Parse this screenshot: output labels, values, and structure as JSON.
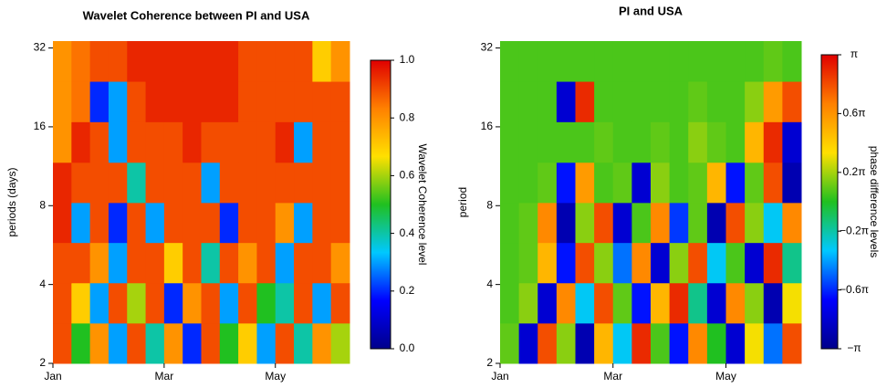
{
  "chart_data": [
    {
      "type": "heatmap",
      "title": "Wavelet Coherence between PI and USA",
      "ylabel": "periods (days)",
      "zlabel": "Wavelet Coherence level",
      "x": [
        "Jan",
        null,
        null,
        null,
        null,
        null,
        "Mar",
        null,
        null,
        null,
        null,
        null,
        "May",
        null,
        null,
        null
      ],
      "y": [
        2.39,
        3.4,
        4.85,
        6.9,
        9.8,
        14,
        20,
        28.5
      ],
      "ylim": [
        2,
        34
      ],
      "yticks": [
        2,
        4,
        8,
        16,
        32
      ],
      "log_y": true,
      "zlim": [
        0,
        1
      ],
      "zticks": [
        {
          "value": 0,
          "label": "0.0"
        },
        {
          "value": 0.2,
          "label": "0.2"
        },
        {
          "value": 0.4,
          "label": "0.4"
        },
        {
          "value": 0.6,
          "label": "0.6"
        },
        {
          "value": 0.8,
          "label": "0.8"
        },
        {
          "value": 1,
          "label": "1.0"
        }
      ],
      "colormap": [
        "#00008b",
        "#0000ff",
        "#00c8ff",
        "#20c020",
        "#ffe000",
        "#ff8000",
        "#e00000"
      ],
      "z": [
        [
          0.9,
          0.5,
          0.8,
          0.3,
          0.9,
          0.4,
          0.8,
          0.2,
          0.9,
          0.5,
          0.7,
          0.3,
          0.9,
          0.4,
          0.8,
          0.6
        ],
        [
          0.9,
          0.7,
          0.3,
          0.9,
          0.6,
          0.9,
          0.2,
          0.8,
          0.9,
          0.3,
          0.9,
          0.5,
          0.4,
          0.9,
          0.3,
          0.9
        ],
        [
          0.9,
          0.9,
          0.8,
          0.3,
          0.9,
          0.9,
          0.7,
          0.9,
          0.4,
          0.9,
          0.8,
          0.9,
          0.3,
          0.9,
          0.9,
          0.8
        ],
        [
          0.95,
          0.3,
          0.9,
          0.2,
          0.9,
          0.3,
          0.9,
          0.9,
          0.9,
          0.2,
          0.9,
          0.9,
          0.8,
          0.3,
          0.9,
          0.9
        ],
        [
          0.95,
          0.9,
          0.9,
          0.9,
          0.4,
          0.9,
          0.9,
          0.9,
          0.3,
          0.9,
          0.9,
          0.9,
          0.9,
          0.9,
          0.9,
          0.9
        ],
        [
          0.8,
          0.95,
          0.9,
          0.3,
          0.9,
          0.9,
          0.9,
          0.95,
          0.9,
          0.9,
          0.9,
          0.9,
          0.95,
          0.3,
          0.9,
          0.9
        ],
        [
          0.8,
          0.85,
          0.2,
          0.3,
          0.9,
          0.95,
          0.95,
          0.95,
          0.95,
          0.95,
          0.9,
          0.9,
          0.9,
          0.9,
          0.9,
          0.9
        ],
        [
          0.8,
          0.85,
          0.9,
          0.9,
          0.95,
          0.95,
          0.95,
          0.95,
          0.95,
          0.95,
          0.9,
          0.9,
          0.9,
          0.9,
          0.7,
          0.8
        ]
      ]
    },
    {
      "type": "heatmap",
      "title": "PI and USA",
      "ylabel": "period",
      "zlabel": "phase difference levels",
      "x": [
        "Jan",
        null,
        null,
        null,
        null,
        null,
        "Mar",
        null,
        null,
        null,
        null,
        null,
        "May",
        null,
        null,
        null
      ],
      "y": [
        2.39,
        3.4,
        4.85,
        6.9,
        9.8,
        14,
        20,
        28.5
      ],
      "ylim": [
        2,
        34
      ],
      "yticks": [
        2,
        4,
        8,
        16,
        32
      ],
      "log_y": true,
      "zlim": [
        -3.1416,
        3.1416
      ],
      "zticks": [
        {
          "value": -3.1416,
          "label": "−π"
        },
        {
          "value": -1.885,
          "label": "−0.6π"
        },
        {
          "value": -0.628,
          "label": "−0.2π"
        },
        {
          "value": 0.628,
          "label": "0.2π"
        },
        {
          "value": 1.885,
          "label": "0.6π"
        },
        {
          "value": 3.1416,
          "label": "π"
        }
      ],
      "colormap": [
        "#00008b",
        "#0000ff",
        "#00c8ff",
        "#20c020",
        "#ffe000",
        "#ff8000",
        "#e00000"
      ],
      "z": [
        [
          0.3,
          -2.5,
          2.5,
          0.5,
          -2.8,
          1.5,
          -1,
          2.8,
          0.2,
          -2,
          2,
          0,
          -2.5,
          1,
          -1.5,
          2.5
        ],
        [
          0.2,
          0.5,
          -2.5,
          2,
          -1,
          2.5,
          0.3,
          -2,
          1.5,
          2.8,
          -0.5,
          -2.5,
          2,
          0.5,
          -2.8,
          1
        ],
        [
          0.2,
          0.3,
          1.5,
          -2,
          2.5,
          0.5,
          -1.5,
          2,
          -2.5,
          0.5,
          2.5,
          -1,
          0.2,
          -2.5,
          2.8,
          -0.5
        ],
        [
          0.2,
          0.3,
          2,
          -2.8,
          0.5,
          2.5,
          -2.5,
          0.2,
          2,
          -1.8,
          0.3,
          -2.8,
          2.5,
          0.5,
          -1,
          2
        ],
        [
          0.2,
          0.2,
          0.3,
          -2,
          1.8,
          0.2,
          0.3,
          -2.5,
          0.5,
          0.2,
          0.3,
          1.5,
          -2,
          0.3,
          2.5,
          -2.8
        ],
        [
          0.2,
          0.2,
          0.2,
          0.2,
          0.2,
          0.3,
          0.2,
          0.2,
          0.3,
          0.2,
          0.5,
          0.3,
          0.2,
          1.5,
          2.8,
          -2.5
        ],
        [
          0.2,
          0.2,
          0.2,
          -2.5,
          2.8,
          0.2,
          0.2,
          0.2,
          0.2,
          0.2,
          0.3,
          0.2,
          0.2,
          0.5,
          1.8,
          2.5
        ],
        [
          0.2,
          0.2,
          0.2,
          0.2,
          0.2,
          0.2,
          0.2,
          0.2,
          0.2,
          0.2,
          0.2,
          0.2,
          0.2,
          0.2,
          0.3,
          0.2
        ]
      ]
    }
  ]
}
